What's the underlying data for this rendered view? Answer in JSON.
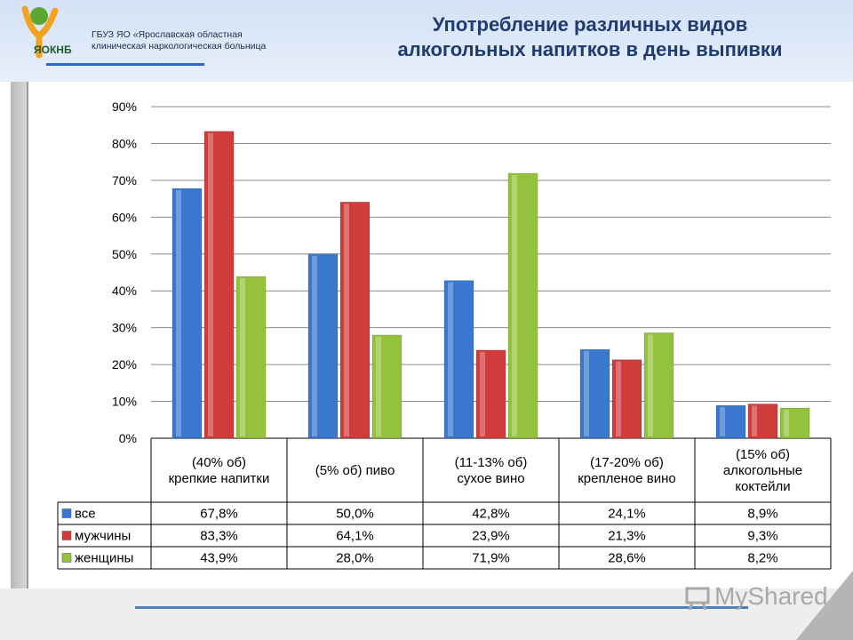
{
  "header": {
    "org_line1": "ГБУЗ ЯО «Ярославская областная",
    "org_line2": "клиническая наркологическая больница",
    "logo_text": "ЯОКНБ",
    "title_line1": "Употребление различных видов",
    "title_line2": "алкогольных напитков в день выпивки"
  },
  "footer": {
    "watermark": "MyShared"
  },
  "chart_data": {
    "type": "bar",
    "categories": [
      [
        "(40% об)",
        "крепкие напитки"
      ],
      [
        "(5% об) пиво"
      ],
      [
        "(11-13% об)",
        "сухое вино"
      ],
      [
        "(17-20% об)",
        "крепленое вино"
      ],
      [
        "(15% об)",
        "алкогольные",
        "коктейли"
      ]
    ],
    "series": [
      {
        "name": "все",
        "color": "#3a78cf",
        "values": [
          67.8,
          50.0,
          42.8,
          24.1,
          8.9
        ],
        "labels": [
          "67,8%",
          "50,0%",
          "42,8%",
          "24,1%",
          "8,9%"
        ]
      },
      {
        "name": "мужчины",
        "color": "#d03c3c",
        "values": [
          83.3,
          64.1,
          23.9,
          21.3,
          9.3
        ],
        "labels": [
          "83,3%",
          "64,1%",
          "23,9%",
          "21,3%",
          "9,3%"
        ]
      },
      {
        "name": "женщины",
        "color": "#94c23c",
        "values": [
          43.9,
          28.0,
          71.9,
          28.6,
          8.2
        ],
        "labels": [
          "43,9%",
          "28,0%",
          "71,9%",
          "28,6%",
          "8,2%"
        ]
      }
    ],
    "yticks": [
      "0%",
      "10%",
      "20%",
      "30%",
      "40%",
      "50%",
      "60%",
      "70%",
      "80%",
      "90%"
    ],
    "ylim": [
      0,
      90
    ],
    "grid": true,
    "legend": "data-table"
  }
}
